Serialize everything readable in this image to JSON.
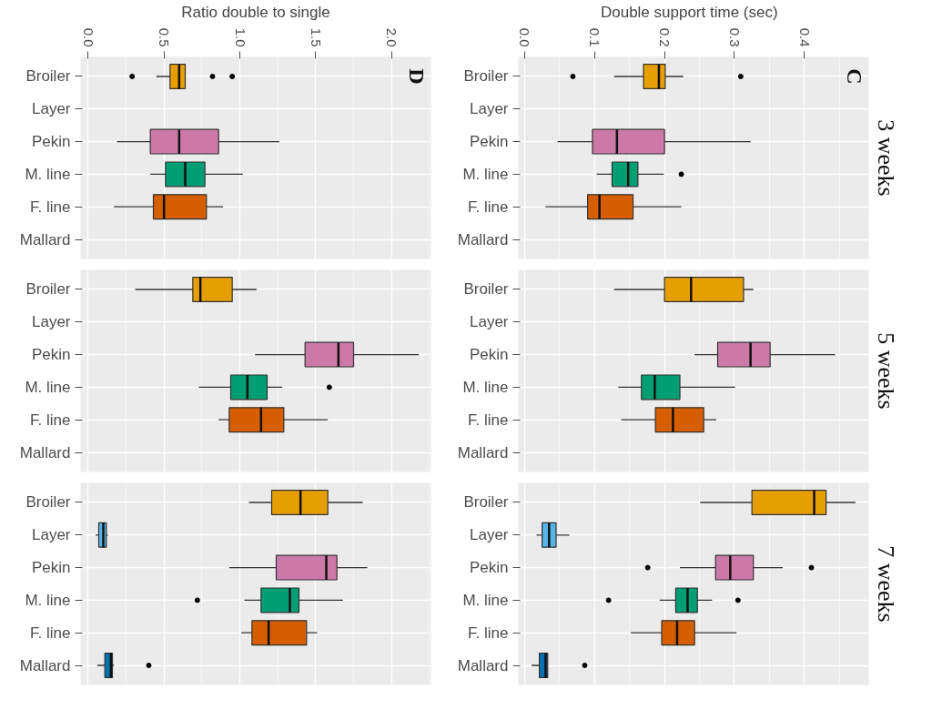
{
  "chart_data": [
    {
      "type": "box",
      "orientation": "horizontal",
      "xlabel": "Ratio double to single",
      "annotations": [
        "D"
      ],
      "grid": true,
      "categories": [
        "Broiler",
        "Layer",
        "Pekin",
        "M. line",
        "F. line",
        "Mallard"
      ],
      "colors": [
        "#e69f00",
        "#56b4e9",
        "#cc79a7",
        "#009e73",
        "#d55e00",
        "#0072b2"
      ],
      "xlim": [
        -0.05,
        2.26
      ],
      "xticks": [
        {
          "value": 0,
          "label": "0.0"
        },
        {
          "value": 0.5,
          "label": "0.5"
        },
        {
          "value": 1,
          "label": "1.0"
        },
        {
          "value": 1.5,
          "label": "1.5"
        },
        {
          "value": 2,
          "label": "2.0"
        }
      ],
      "boxes": [
        {
          "low": 0.45,
          "q1": 0.54,
          "median": 0.6,
          "q3": 0.64,
          "high": 0.64,
          "outliers": [
            0.29,
            0.82,
            0.95
          ]
        },
        null,
        {
          "low": 0.19,
          "q1": 0.41,
          "median": 0.6,
          "q3": 0.86,
          "high": 1.26
        },
        {
          "low": 0.41,
          "q1": 0.51,
          "median": 0.64,
          "q3": 0.77,
          "high": 1.02
        },
        {
          "low": 0.17,
          "q1": 0.43,
          "median": 0.5,
          "q3": 0.78,
          "high": 0.89
        },
        null
      ]
    },
    {
      "type": "box",
      "orientation": "horizontal",
      "xlabel": "Double support time   (sec)",
      "annotations": [
        "C"
      ],
      "title": "3 weeks",
      "grid": true,
      "categories": [
        "Broiler",
        "Layer",
        "Pekin",
        "M. line",
        "F. line",
        "Mallard"
      ],
      "colors": [
        "#e69f00",
        "#56b4e9",
        "#cc79a7",
        "#009e73",
        "#d55e00",
        "#0072b2"
      ],
      "xlim": [
        -0.009,
        0.492
      ],
      "xticks": [
        {
          "value": 0,
          "label": "0.0"
        },
        {
          "value": 0.1,
          "label": "0.1"
        },
        {
          "value": 0.2,
          "label": "0.2"
        },
        {
          "value": 0.3,
          "label": "0.3"
        },
        {
          "value": 0.4,
          "label": "0.4"
        }
      ],
      "boxes": [
        {
          "low": 0.128,
          "q1": 0.17,
          "median": 0.192,
          "q3": 0.201,
          "high": 0.227,
          "outliers": [
            0.069,
            0.309
          ]
        },
        null,
        {
          "low": 0.047,
          "q1": 0.097,
          "median": 0.132,
          "q3": 0.2,
          "high": 0.323
        },
        {
          "low": 0.103,
          "q1": 0.125,
          "median": 0.148,
          "q3": 0.162,
          "high": 0.199,
          "outliers": [
            0.224
          ]
        },
        {
          "low": 0.03,
          "q1": 0.09,
          "median": 0.107,
          "q3": 0.155,
          "high": 0.224
        },
        null
      ]
    },
    {
      "type": "box",
      "orientation": "horizontal",
      "grid": true,
      "tick_labels": "y",
      "categories": [
        "Broiler",
        "Layer",
        "Pekin",
        "M. line",
        "F. line",
        "Mallard"
      ],
      "colors": [
        "#e69f00",
        "#56b4e9",
        "#cc79a7",
        "#009e73",
        "#d55e00",
        "#0072b2"
      ],
      "xlim": [
        -0.05,
        2.26
      ],
      "xticks": [
        0,
        0.5,
        1,
        1.5,
        2
      ],
      "boxes": [
        {
          "low": 0.31,
          "q1": 0.69,
          "median": 0.74,
          "q3": 0.95,
          "high": 1.11
        },
        null,
        {
          "low": 1.1,
          "q1": 1.43,
          "median": 1.65,
          "q3": 1.75,
          "high": 2.18
        },
        {
          "low": 0.73,
          "q1": 0.94,
          "median": 1.05,
          "q3": 1.18,
          "high": 1.28,
          "outliers": [
            1.59
          ]
        },
        {
          "low": 0.86,
          "q1": 0.93,
          "median": 1.14,
          "q3": 1.29,
          "high": 1.58
        },
        null
      ]
    },
    {
      "type": "box",
      "orientation": "horizontal",
      "title": "5 weeks",
      "grid": true,
      "tick_labels": "y",
      "categories": [
        "Broiler",
        "Layer",
        "Pekin",
        "M. line",
        "F. line",
        "Mallard"
      ],
      "colors": [
        "#e69f00",
        "#56b4e9",
        "#cc79a7",
        "#009e73",
        "#d55e00",
        "#0072b2"
      ],
      "xlim": [
        -0.009,
        0.492
      ],
      "xticks": [
        0,
        0.1,
        0.2,
        0.3,
        0.4
      ],
      "boxes": [
        {
          "low": 0.128,
          "q1": 0.2,
          "median": 0.238,
          "q3": 0.313,
          "high": 0.327
        },
        null,
        {
          "low": 0.243,
          "q1": 0.276,
          "median": 0.323,
          "q3": 0.351,
          "high": 0.444
        },
        {
          "low": 0.134,
          "q1": 0.167,
          "median": 0.186,
          "q3": 0.222,
          "high": 0.301
        },
        {
          "low": 0.138,
          "q1": 0.187,
          "median": 0.212,
          "q3": 0.256,
          "high": 0.274
        },
        null
      ]
    },
    {
      "type": "box",
      "orientation": "horizontal",
      "grid": true,
      "tick_labels": "y",
      "categories": [
        "Broiler",
        "Layer",
        "Pekin",
        "M. line",
        "F. line",
        "Mallard"
      ],
      "colors": [
        "#e69f00",
        "#56b4e9",
        "#cc79a7",
        "#009e73",
        "#d55e00",
        "#0072b2"
      ],
      "xlim": [
        -0.05,
        2.26
      ],
      "xticks": [
        0,
        0.5,
        1,
        1.5,
        2
      ],
      "boxes": [
        {
          "low": 1.06,
          "q1": 1.21,
          "median": 1.4,
          "q3": 1.58,
          "high": 1.81
        },
        {
          "low": 0.05,
          "q1": 0.07,
          "median": 0.1,
          "q3": 0.12,
          "high": 0.13
        },
        {
          "low": 0.93,
          "q1": 1.24,
          "median": 1.57,
          "q3": 1.64,
          "high": 1.84
        },
        {
          "low": 1.03,
          "q1": 1.14,
          "median": 1.33,
          "q3": 1.39,
          "high": 1.68,
          "outliers": [
            0.72
          ]
        },
        {
          "low": 1.01,
          "q1": 1.08,
          "median": 1.19,
          "q3": 1.44,
          "high": 1.51
        },
        {
          "low": 0.06,
          "q1": 0.11,
          "median": 0.15,
          "q3": 0.16,
          "high": 0.17,
          "outliers": [
            0.4
          ]
        }
      ]
    },
    {
      "type": "box",
      "orientation": "horizontal",
      "title": "7 weeks",
      "grid": true,
      "tick_labels": "y",
      "categories": [
        "Broiler",
        "Layer",
        "Pekin",
        "M. line",
        "F. line",
        "Mallard"
      ],
      "colors": [
        "#e69f00",
        "#56b4e9",
        "#cc79a7",
        "#009e73",
        "#d55e00",
        "#0072b2"
      ],
      "xlim": [
        -0.009,
        0.492
      ],
      "xticks": [
        0,
        0.1,
        0.2,
        0.3,
        0.4
      ],
      "boxes": [
        {
          "low": 0.251,
          "q1": 0.325,
          "median": 0.414,
          "q3": 0.431,
          "high": 0.473
        },
        {
          "low": 0.017,
          "q1": 0.025,
          "median": 0.035,
          "q3": 0.045,
          "high": 0.064
        },
        {
          "low": 0.222,
          "q1": 0.273,
          "median": 0.294,
          "q3": 0.327,
          "high": 0.369,
          "outliers": [
            0.176,
            0.41
          ]
        },
        {
          "low": 0.193,
          "q1": 0.216,
          "median": 0.233,
          "q3": 0.247,
          "high": 0.268,
          "outliers": [
            0.12,
            0.305
          ]
        },
        {
          "low": 0.152,
          "q1": 0.196,
          "median": 0.218,
          "q3": 0.243,
          "high": 0.303
        },
        {
          "low": 0.01,
          "q1": 0.021,
          "median": 0.03,
          "q3": 0.033,
          "high": 0.033,
          "outliers": [
            0.086
          ]
        }
      ]
    }
  ]
}
